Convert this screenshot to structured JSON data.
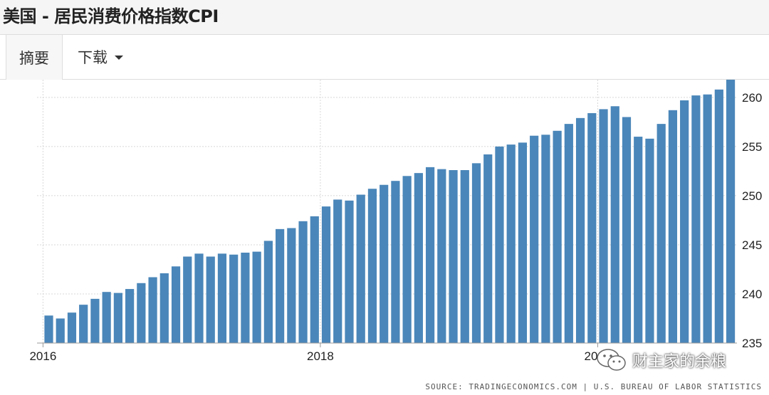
{
  "page": {
    "title": "美国 - 居民消费价格指数CPI"
  },
  "tabs": [
    {
      "label": "摘要",
      "active": true
    },
    {
      "label": "下载",
      "has_dropdown": true
    }
  ],
  "watermark": {
    "text": "财主家的余粮",
    "icon": "wechat-icon"
  },
  "source": "SOURCE: TRADINGECONOMICS.COM | U.S. BUREAU OF LABOR STATISTICS",
  "colors": {
    "bar": "#4a86b9",
    "grid": "#d8d8d8",
    "title_bg": "#f5f5f5"
  },
  "chart_data": {
    "type": "bar",
    "title": "美国 - 居民消费价格指数CPI",
    "x_start": "2016-01",
    "frequency": "monthly",
    "x_ticks": [
      "2016",
      "2018",
      "2020"
    ],
    "y_ticks": [
      235,
      240,
      245,
      250,
      255,
      260
    ],
    "ylim": [
      235,
      261.8
    ],
    "y_axis_position": "right",
    "grid": true,
    "values": [
      237.8,
      237.5,
      238.1,
      238.9,
      239.5,
      240.2,
      240.1,
      240.5,
      241.1,
      241.7,
      242.1,
      242.8,
      243.8,
      244.1,
      243.8,
      244.1,
      244.0,
      244.2,
      244.3,
      245.4,
      246.6,
      246.7,
      247.4,
      247.9,
      248.9,
      249.6,
      249.5,
      250.1,
      250.7,
      251.1,
      251.5,
      252.0,
      252.3,
      252.9,
      252.7,
      252.6,
      252.6,
      253.3,
      254.2,
      255.0,
      255.2,
      255.4,
      256.1,
      256.2,
      256.6,
      257.3,
      257.9,
      258.4,
      258.8,
      259.1,
      258.0,
      256.0,
      255.8,
      257.3,
      258.7,
      259.7,
      260.2,
      260.3,
      260.8,
      261.8
    ]
  }
}
